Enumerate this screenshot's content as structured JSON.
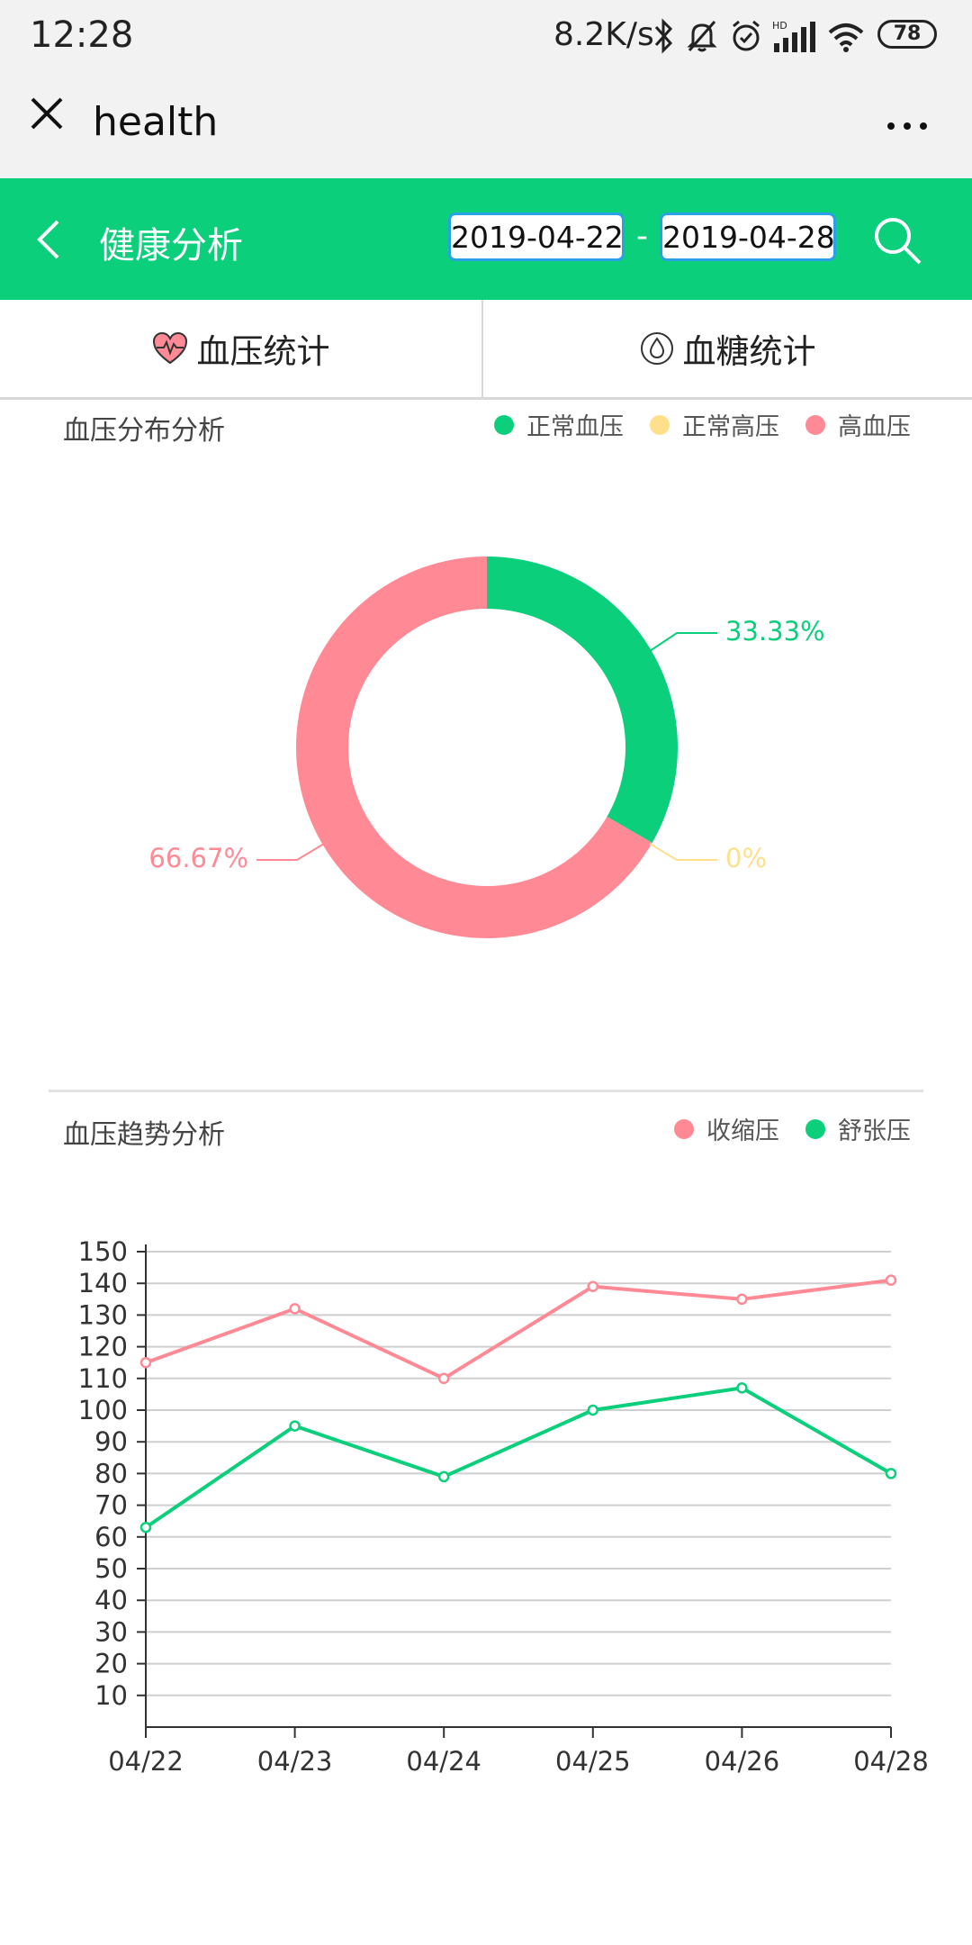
{
  "status_bar": {
    "time": "12:28",
    "net_speed": "8.2K/s",
    "battery": "78"
  },
  "title_bar": {
    "title": "health"
  },
  "header": {
    "title": "健康分析",
    "start_date": "2019-04-22",
    "separator": "-",
    "end_date": "2019-04-28"
  },
  "tabs": [
    {
      "label": "血压统计"
    },
    {
      "label": "血糖统计"
    }
  ],
  "distribution": {
    "title": "血压分布分析",
    "legend": [
      {
        "label": "正常血压",
        "color": "#0ccf7c"
      },
      {
        "label": "正常高压",
        "color": "#ffe08a"
      },
      {
        "label": "高血压",
        "color": "#ff8a96"
      }
    ],
    "labels": {
      "normal": "33.33%",
      "high_normal": "0%",
      "hypertension": "66.67%"
    }
  },
  "trend": {
    "title": "血压趋势分析",
    "legend": [
      {
        "label": "收缩压",
        "color": "#ff8a96"
      },
      {
        "label": "舒张压",
        "color": "#0ccf7c"
      }
    ]
  },
  "chart_data": [
    {
      "type": "pie",
      "title": "血压分布分析",
      "categories": [
        "正常血压",
        "正常高压",
        "高血压"
      ],
      "values": [
        33.33,
        0,
        66.67
      ],
      "colors": [
        "#0ccf7c",
        "#ffe08a",
        "#ff8a96"
      ],
      "legend": "top-right"
    },
    {
      "type": "line",
      "title": "血压趋势分析",
      "x": [
        "04/22",
        "04/23",
        "04/24",
        "04/25",
        "04/26",
        "04/28"
      ],
      "series": [
        {
          "name": "收缩压",
          "values": [
            115,
            132,
            110,
            139,
            135,
            141
          ],
          "color": "#ff8a96"
        },
        {
          "name": "舒张压",
          "values": [
            63,
            95,
            79,
            100,
            107,
            80
          ],
          "color": "#0ccf7c"
        }
      ],
      "ylim": [
        0,
        150
      ],
      "yticks": [
        10,
        20,
        30,
        40,
        50,
        60,
        70,
        80,
        90,
        100,
        110,
        120,
        130,
        140,
        150
      ],
      "grid": true,
      "legend": "top-right"
    }
  ]
}
